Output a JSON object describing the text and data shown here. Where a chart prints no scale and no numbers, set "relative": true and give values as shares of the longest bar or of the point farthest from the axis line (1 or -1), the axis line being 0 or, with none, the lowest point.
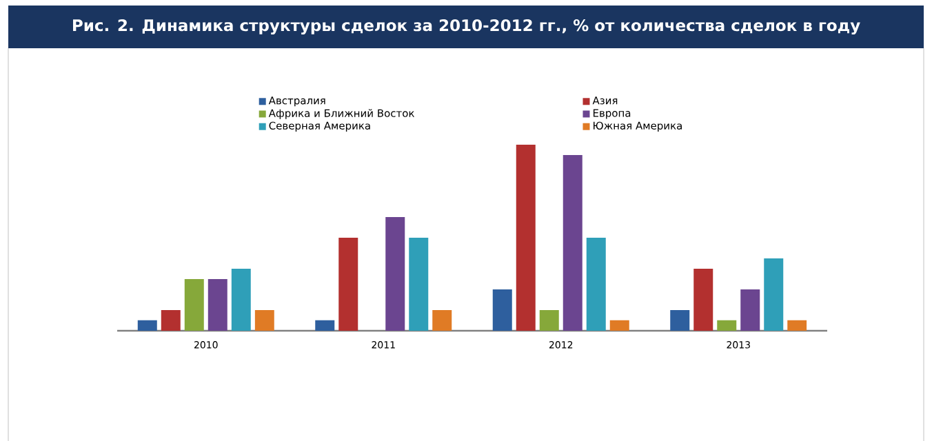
{
  "chart_data": {
    "type": "bar",
    "title": "Рис. 2. Динамика структуры сделок за 2010-2012 гг., % от количества сделок в году",
    "relative": true,
    "legend": "top",
    "categories": [
      "2010",
      "2011",
      "2012",
      "2013"
    ],
    "series": [
      {
        "name": "Австралия",
        "color": "#2e5f9e",
        "values": [
          0.056,
          0.056,
          0.222,
          0.111
        ]
      },
      {
        "name": "Азия",
        "color": "#b3302f",
        "values": [
          0.111,
          0.5,
          1,
          0.333
        ]
      },
      {
        "name": "Африка и Ближний Восток",
        "color": "#86a83a",
        "values": [
          0.278,
          0,
          0.111,
          0.056
        ]
      },
      {
        "name": "Европа",
        "color": "#6b4590",
        "values": [
          0.278,
          0.611,
          0.944,
          0.222
        ]
      },
      {
        "name": "Северная Америка",
        "color": "#2f9fb8",
        "values": [
          0.333,
          0.5,
          0.5,
          0.389
        ]
      },
      {
        "name": "Южная Америка",
        "color": "#e07b25",
        "values": [
          0.111,
          0.111,
          0.056,
          0.056
        ]
      }
    ]
  }
}
